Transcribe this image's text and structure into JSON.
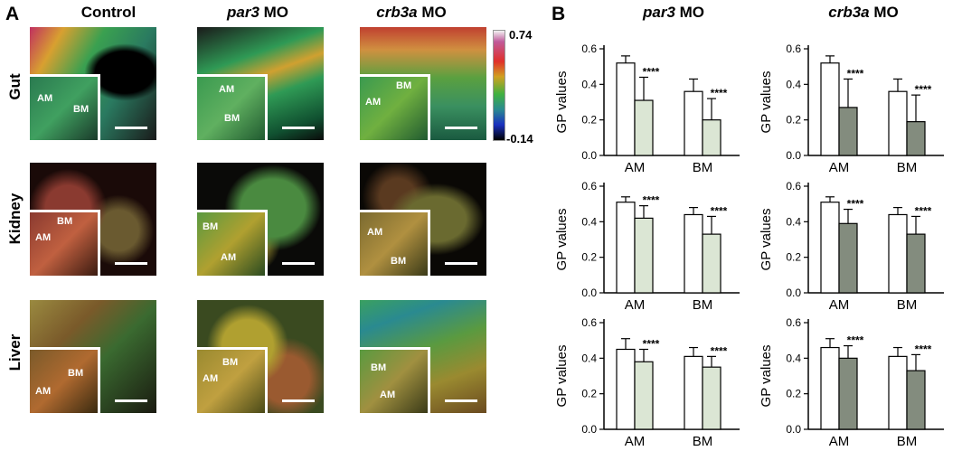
{
  "panel_a": {
    "letter": "A",
    "columns": [
      {
        "italic": "",
        "plain": "Control"
      },
      {
        "italic": "par3",
        "plain": " MO"
      },
      {
        "italic": "crb3a",
        "plain": " MO"
      }
    ],
    "rows": [
      "Gut",
      "Kidney",
      "Liver"
    ],
    "colorbar": {
      "max_label": "0.74",
      "min_label": "-0.14"
    },
    "inset_tags": {
      "gut": [
        [
          "AM",
          "BM"
        ],
        [
          "AM",
          "BM"
        ],
        [
          "BM",
          "AM"
        ]
      ],
      "kidney": [
        [
          "BM",
          "AM"
        ],
        [
          "BM",
          "AM"
        ],
        [
          "AM",
          "BM"
        ]
      ],
      "liver": [
        [
          "BM",
          "AM"
        ],
        [
          "BM",
          "AM"
        ],
        [
          "BM",
          "AM"
        ]
      ]
    },
    "colors": {
      "gut_ctrl": "#3aa050",
      "gut_par3": "#2f9a55",
      "gut_crb3a": "#5aa040",
      "kidney_ctrl": "#8a3a30",
      "kidney_par3": "#4a8a40",
      "kidney_crb3a": "#6a6a30",
      "liver_ctrl": "#7a5a2a",
      "liver_par3": "#9a8a30",
      "liver_crb3a": "#4a9a60"
    }
  },
  "panel_b": {
    "letter": "B",
    "columns": [
      {
        "italic": "par3",
        "plain": " MO"
      },
      {
        "italic": "crb3a",
        "plain": " MO"
      }
    ],
    "significance": "****",
    "colors": {
      "control_fill": "#ffffff",
      "par3_fill": "#dbe6d4",
      "crb3a_fill": "#838c7e",
      "stroke": "#000000"
    }
  },
  "chart_data": [
    {
      "type": "bar",
      "panel": "B",
      "row": "Gut",
      "column": "par3 MO",
      "ylabel": "GP values",
      "categories": [
        "AM",
        "BM"
      ],
      "ylim": [
        0,
        0.6
      ],
      "yticks": [
        "0.0",
        "0.2",
        "0.4",
        "0.6"
      ],
      "series": [
        {
          "values": [
            0.52,
            0.36
          ],
          "errors": [
            0.04,
            0.07
          ]
        },
        {
          "values": [
            0.31,
            0.2
          ],
          "errors": [
            0.13,
            0.12
          ]
        }
      ]
    },
    {
      "type": "bar",
      "panel": "B",
      "row": "Gut",
      "column": "crb3a MO",
      "ylabel": "GP values",
      "categories": [
        "AM",
        "BM"
      ],
      "ylim": [
        0,
        0.6
      ],
      "yticks": [
        "0.0",
        "0.2",
        "0.4",
        "0.6"
      ],
      "series": [
        {
          "values": [
            0.52,
            0.36
          ],
          "errors": [
            0.04,
            0.07
          ]
        },
        {
          "values": [
            0.27,
            0.19
          ],
          "errors": [
            0.16,
            0.15
          ]
        }
      ]
    },
    {
      "type": "bar",
      "panel": "B",
      "row": "Kidney",
      "column": "par3 MO",
      "ylabel": "GP values",
      "categories": [
        "AM",
        "BM"
      ],
      "ylim": [
        0,
        0.6
      ],
      "yticks": [
        "0.0",
        "0.2",
        "0.4",
        "0.6"
      ],
      "series": [
        {
          "values": [
            0.51,
            0.44
          ],
          "errors": [
            0.03,
            0.04
          ]
        },
        {
          "values": [
            0.42,
            0.33
          ],
          "errors": [
            0.07,
            0.1
          ]
        }
      ]
    },
    {
      "type": "bar",
      "panel": "B",
      "row": "Kidney",
      "column": "crb3a MO",
      "ylabel": "GP values",
      "categories": [
        "AM",
        "BM"
      ],
      "ylim": [
        0,
        0.6
      ],
      "yticks": [
        "0.0",
        "0.2",
        "0.4",
        "0.6"
      ],
      "series": [
        {
          "values": [
            0.51,
            0.44
          ],
          "errors": [
            0.03,
            0.04
          ]
        },
        {
          "values": [
            0.39,
            0.33
          ],
          "errors": [
            0.08,
            0.1
          ]
        }
      ]
    },
    {
      "type": "bar",
      "panel": "B",
      "row": "Liver",
      "column": "par3 MO",
      "ylabel": "GP values",
      "categories": [
        "AM",
        "BM"
      ],
      "ylim": [
        0,
        0.6
      ],
      "yticks": [
        "0.0",
        "0.2",
        "0.4",
        "0.6"
      ],
      "series": [
        {
          "values": [
            0.45,
            0.41
          ],
          "errors": [
            0.06,
            0.05
          ]
        },
        {
          "values": [
            0.38,
            0.35
          ],
          "errors": [
            0.07,
            0.06
          ]
        }
      ]
    },
    {
      "type": "bar",
      "panel": "B",
      "row": "Liver",
      "column": "crb3a MO",
      "ylabel": "GP values",
      "categories": [
        "AM",
        "BM"
      ],
      "ylim": [
        0,
        0.6
      ],
      "yticks": [
        "0.0",
        "0.2",
        "0.4",
        "0.6"
      ],
      "series": [
        {
          "values": [
            0.46,
            0.41
          ],
          "errors": [
            0.05,
            0.05
          ]
        },
        {
          "values": [
            0.4,
            0.33
          ],
          "errors": [
            0.07,
            0.09
          ]
        }
      ]
    }
  ]
}
